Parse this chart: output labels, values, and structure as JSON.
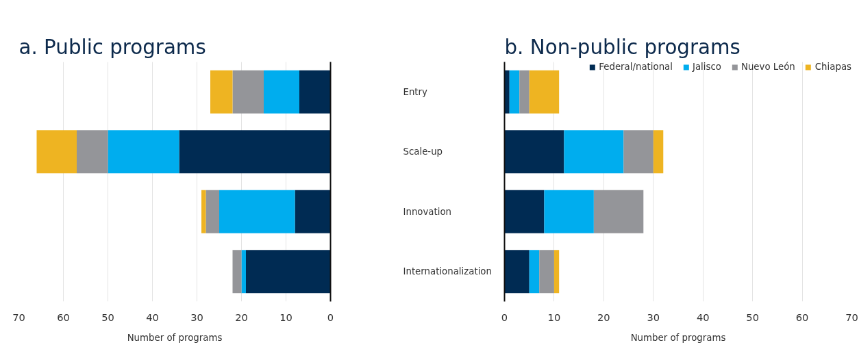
{
  "chart_data": [
    {
      "type": "bar",
      "title": "a. Public programs",
      "xlabel": "Number of programs",
      "orientation": "horizontal",
      "stacked": true,
      "categories": [
        "Entry",
        "Scale-up",
        "Innovation",
        "Internationalization"
      ],
      "xlim": [
        70,
        0
      ],
      "xticks": [
        70,
        60,
        50,
        40,
        30,
        20,
        10,
        0
      ],
      "grid": "x",
      "series": [
        {
          "color": "#002b53",
          "values": [
            7,
            34,
            8,
            19
          ]
        },
        {
          "color": "#00adee",
          "values": [
            8,
            16,
            17,
            1
          ]
        },
        {
          "color": "#949599",
          "values": [
            7,
            7,
            3,
            2
          ]
        },
        {
          "color": "#eeb422",
          "values": [
            5,
            9,
            1,
            0
          ]
        }
      ]
    },
    {
      "type": "bar",
      "title": "b. Non-public programs",
      "xlabel": "Number of programs",
      "orientation": "horizontal",
      "stacked": true,
      "xlim": [
        0,
        70
      ],
      "xticks": [
        0,
        10,
        20,
        30,
        40,
        50,
        60,
        70
      ],
      "grid": "x",
      "legend": "top right",
      "tick_labels": "x",
      "series": [
        {
          "name": "Federal/national",
          "color": "#002b53",
          "values": [
            1,
            12,
            8,
            5
          ]
        },
        {
          "name": "Jalisco",
          "color": "#00adee",
          "values": [
            2,
            12,
            10,
            2
          ]
        },
        {
          "name": "Nuevo León",
          "color": "#949599",
          "values": [
            2,
            6,
            10,
            3
          ]
        },
        {
          "name": "Chiapas",
          "color": "#eeb422",
          "values": [
            6,
            2,
            0,
            1
          ]
        }
      ]
    }
  ]
}
